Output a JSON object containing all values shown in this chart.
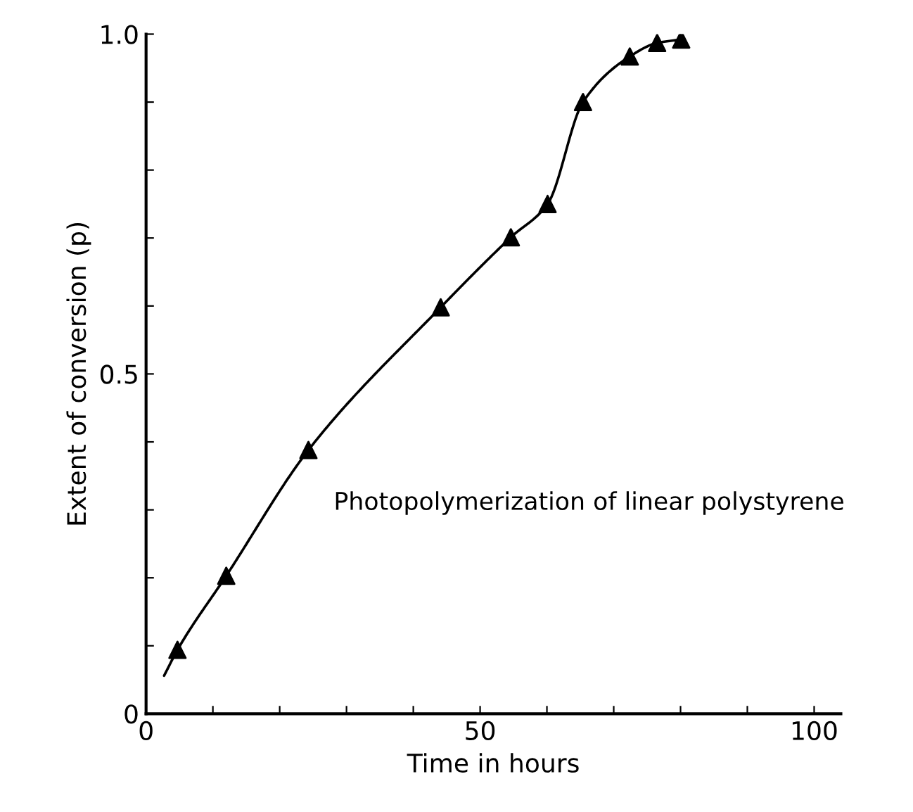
{
  "chart_data": {
    "type": "scatter",
    "xlabel": "Time in hours",
    "ylabel": "Extent of conversion (p)",
    "annotations": [
      "Photopolymerization of linear polystyrene"
    ],
    "series": [
      {
        "type": "line",
        "color": "#000000",
        "marker": "none",
        "x": [
          2.7,
          4.7,
          12.0,
          24.3,
          44.1,
          54.6,
          60.1,
          65.4,
          72.4,
          76.5,
          80.1
        ],
        "values": [
          0.056,
          0.094,
          0.203,
          0.388,
          0.598,
          0.701,
          0.75,
          0.9,
          0.967,
          0.987,
          0.992
        ]
      },
      {
        "color": "#000000",
        "marker": "triangle",
        "x": [
          4.7,
          12.0,
          24.3,
          44.1,
          54.6,
          60.1,
          65.4,
          72.4,
          76.5,
          80.1
        ],
        "values": [
          0.094,
          0.203,
          0.388,
          0.598,
          0.701,
          0.75,
          0.9,
          0.967,
          0.987,
          0.992
        ]
      }
    ],
    "xlim": [
      0,
      104
    ],
    "xticks": [
      0,
      {
        "value": 10,
        "label": null
      },
      {
        "value": 20,
        "label": null
      },
      {
        "value": 30,
        "label": null
      },
      {
        "value": 40,
        "label": null
      },
      50,
      {
        "value": 60,
        "label": null
      },
      {
        "value": 70,
        "label": null
      },
      {
        "value": 80,
        "label": null
      },
      {
        "value": 90,
        "label": null
      },
      100
    ],
    "ylim": [
      0,
      1.0
    ],
    "yticks": [
      0,
      {
        "value": 0.1,
        "label": null
      },
      {
        "value": 0.2,
        "label": null
      },
      {
        "value": 0.3,
        "label": null
      },
      {
        "value": 0.4,
        "label": null
      },
      {
        "value": 0.5,
        "label": "0.5"
      },
      {
        "value": 0.6,
        "label": null
      },
      {
        "value": 0.7,
        "label": null
      },
      {
        "value": 0.8,
        "label": null
      },
      {
        "value": 0.9,
        "label": null
      },
      {
        "value": 1.0,
        "label": "1.0"
      }
    ],
    "grid": false,
    "legend": false
  }
}
